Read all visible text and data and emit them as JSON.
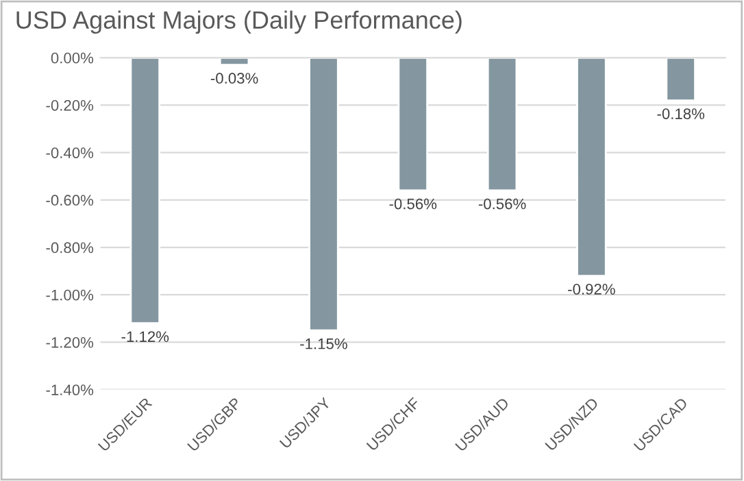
{
  "chart_data": {
    "type": "bar",
    "title": "USD Against Majors (Daily Performance)",
    "categories": [
      "USD/EUR",
      "USD/GBP",
      "USD/JPY",
      "USD/CHF",
      "USD/AUD",
      "USD/NZD",
      "USD/CAD"
    ],
    "values": [
      -1.12,
      -0.03,
      -1.15,
      -0.56,
      -0.56,
      -0.92,
      -0.18
    ],
    "value_labels": [
      "-1.12%",
      "-0.03%",
      "-1.15%",
      "-0.56%",
      "-0.56%",
      "-0.92%",
      "-0.18%"
    ],
    "color": "#8497a0",
    "ylim": [
      -1.4,
      0
    ],
    "yticks": [
      {
        "value": 0,
        "label": "0.00%"
      },
      {
        "value": -0.2,
        "label": "-0.20%"
      },
      {
        "value": -0.4,
        "label": "-0.40%"
      },
      {
        "value": -0.6,
        "label": "-0.60%"
      },
      {
        "value": -0.8,
        "label": "-0.80%"
      },
      {
        "value": -1.0,
        "label": "-1.00%"
      },
      {
        "value": -1.2,
        "label": "-1.20%"
      },
      {
        "value": -1.4,
        "label": "-1.40%"
      }
    ],
    "grid": "y"
  }
}
